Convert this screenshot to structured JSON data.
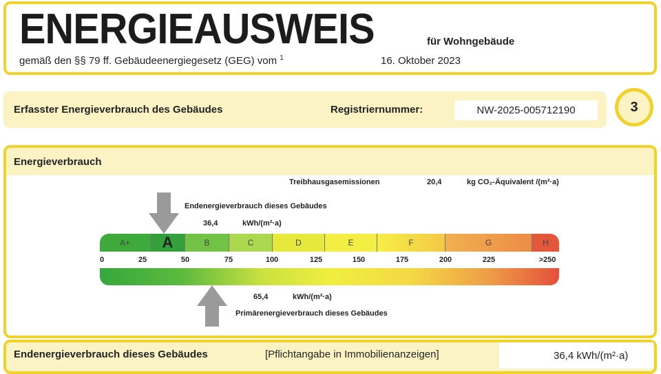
{
  "header": {
    "title": "ENERGIEAUSWEIS",
    "subtitle": "für Wohngebäude",
    "legal": "gemäß den §§ 79 ff. Gebäudeenergiegesetz (GEG) vom",
    "footnote": "1",
    "date": "16. Oktober 2023"
  },
  "info": {
    "type": "Erfasster Energieverbrauch des Gebäudes",
    "reg_label": "Registriernummer:",
    "reg_number": "NW-2025-005712190",
    "page": "3"
  },
  "section": {
    "title": "Energieverbrauch",
    "emissions_label": "Treibhausgasemissionen",
    "emissions_value": "20,4",
    "emissions_unit": "kg CO₂-Äquivalent /(m²·a)",
    "end_label": "Endenergieverbrauch dieses Gebäudes",
    "end_value": "36,4",
    "end_unit": "kWh/(m²·a)",
    "primary_value": "65,4",
    "primary_unit": "kWh/(m²·a)",
    "primary_label": "Primärenergieverbrauch dieses Gebäudes",
    "classes": [
      "A+",
      "A",
      "B",
      "C",
      "D",
      "E",
      "F",
      "G",
      "H"
    ],
    "active_class": "A",
    "ticks": [
      "0",
      "25",
      "50",
      "75",
      "100",
      "125",
      "150",
      "175",
      "200",
      "225",
      ">250"
    ],
    "colors": {
      "border": "#f0d22a",
      "band": "#fbf3c4",
      "arrow": "#9a9a9a"
    }
  },
  "footer": {
    "label": "Endenergieverbrauch dieses Gebäudes",
    "note": "[Pflichtangabe in Immobilienanzeigen]",
    "value": "36,4 kWh/(m²·a)"
  }
}
